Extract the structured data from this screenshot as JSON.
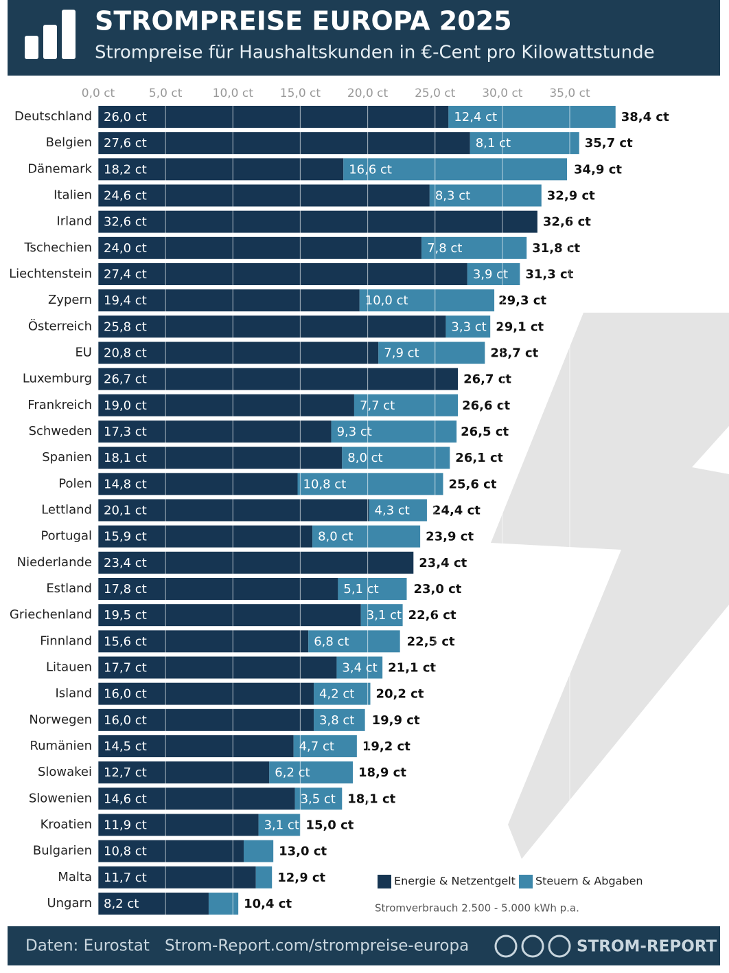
{
  "chart_data": {
    "type": "stacked-bar-horizontal",
    "title": "STROMPREISE EUROPA 2025",
    "subtitle": "Strompreise für Haushaltskunden in €-Cent pro Kilowattstunde",
    "categories": [
      "Deutschland",
      "Belgien",
      "Dänemark",
      "Italien",
      "Irland",
      "Tschechien",
      "Liechtenstein",
      "Zypern",
      "Österreich",
      "EU",
      "Luxemburg",
      "Frankreich",
      "Schweden",
      "Spanien",
      "Polen",
      "Lettland",
      "Portugal",
      "Niederlande",
      "Estland",
      "Griechenland",
      "Finnland",
      "Litauen",
      "Island",
      "Norwegen",
      "Rumänien",
      "Slowakei",
      "Slowenien",
      "Kroatien",
      "Bulgarien",
      "Malta",
      "Ungarn"
    ],
    "series": [
      {
        "name": "Energie & Netzentgelt",
        "color": "#163552",
        "values": [
          26.0,
          27.6,
          18.2,
          24.6,
          32.6,
          24.0,
          27.4,
          19.4,
          25.8,
          20.8,
          26.7,
          19.0,
          17.3,
          18.1,
          14.8,
          20.1,
          15.9,
          23.4,
          17.8,
          19.5,
          15.6,
          17.7,
          16.0,
          16.0,
          14.5,
          12.7,
          14.6,
          11.9,
          10.8,
          11.7,
          8.2
        ],
        "value_labels": [
          "26,0 ct",
          "27,6 ct",
          "18,2 ct",
          "24,6 ct",
          "32,6 ct",
          "24,0 ct",
          "27,4 ct",
          "19,4 ct",
          "25,8 ct",
          "20,8 ct",
          "26,7 ct",
          "19,0 ct",
          "17,3 ct",
          "18,1 ct",
          "14,8 ct",
          "20,1 ct",
          "15,9 ct",
          "23,4 ct",
          "17,8 ct",
          "19,5 ct",
          "15,6 ct",
          "17,7 ct",
          "16,0 ct",
          "16,0 ct",
          "14,5 ct",
          "12,7 ct",
          "14,6 ct",
          "11,9 ct",
          "10,8 ct",
          "11,7 ct",
          "8,2 ct"
        ]
      },
      {
        "name": "Steuern & Abgaben",
        "color": "#3d87aa",
        "values": [
          12.4,
          8.1,
          16.6,
          8.3,
          null,
          7.8,
          3.9,
          10.0,
          3.3,
          7.9,
          null,
          7.7,
          9.3,
          8.0,
          10.8,
          4.3,
          8.0,
          null,
          5.1,
          3.1,
          6.8,
          3.4,
          4.2,
          3.8,
          4.7,
          6.2,
          3.5,
          3.1,
          2.2,
          1.2,
          2.2
        ],
        "value_labels": [
          "12,4 ct",
          "8,1 ct",
          "16,6 ct",
          "8,3 ct",
          null,
          "7,8 ct",
          "3,9 ct",
          "10,0 ct",
          "3,3 ct",
          "7,9 ct",
          null,
          "7,7 ct",
          "9,3 ct",
          "8,0 ct",
          "10,8 ct",
          "4,3 ct",
          "8,0 ct",
          null,
          "5,1 ct",
          "3,1 ct",
          "6,8 ct",
          "3,4 ct",
          "4,2 ct",
          "3,8 ct",
          "4,7 ct",
          "6,2 ct",
          "3,5 ct",
          "3,1 ct",
          null,
          null,
          null
        ]
      }
    ],
    "totals": [
      38.4,
      35.7,
      34.9,
      32.9,
      32.6,
      31.8,
      31.3,
      29.3,
      29.1,
      28.7,
      26.7,
      26.6,
      26.5,
      26.1,
      25.6,
      24.4,
      23.9,
      23.4,
      23.0,
      22.6,
      22.5,
      21.1,
      20.2,
      19.9,
      19.2,
      18.9,
      18.1,
      15.0,
      13.0,
      12.9,
      10.4
    ],
    "total_labels": [
      "38,4 ct",
      "35,7 ct",
      "34,9 ct",
      "32,9 ct",
      "32,6 ct",
      "31,8 ct",
      "31,3 ct",
      "29,3 ct",
      "29,1 ct",
      "28,7 ct",
      "26,7 ct",
      "26,6 ct",
      "26,5 ct",
      "26,1 ct",
      "25,6 ct",
      "24,4 ct",
      "23,9 ct",
      "23,4 ct",
      "23,0 ct",
      "22,6 ct",
      "22,5 ct",
      "21,1 ct",
      "20,2 ct",
      "19,9 ct",
      "19,2 ct",
      "18,9 ct",
      "18,1 ct",
      "15,0 ct",
      "13,0 ct",
      "12,9 ct",
      "10,4 ct"
    ],
    "xlim": [
      0,
      40
    ],
    "xticks": [
      {
        "value": 0,
        "label": "0,0 ct"
      },
      {
        "value": 5,
        "label": "5,0 ct"
      },
      {
        "value": 10,
        "label": "10,0 ct"
      },
      {
        "value": 15,
        "label": "15,0 ct"
      },
      {
        "value": 20,
        "label": "20,0 ct"
      },
      {
        "value": 25,
        "label": "25,0 ct"
      },
      {
        "value": 30,
        "label": "30,0 ct"
      },
      {
        "value": 35,
        "label": "35,0 ct"
      }
    ],
    "grid": true,
    "note": "Stromverbrauch 2.500 - 5.000 kWh p.a."
  },
  "footer": {
    "source": "Daten: Eurostat",
    "url": "Strom-Report.com/strompreise-europa",
    "brand": "STROM-REPORT"
  }
}
